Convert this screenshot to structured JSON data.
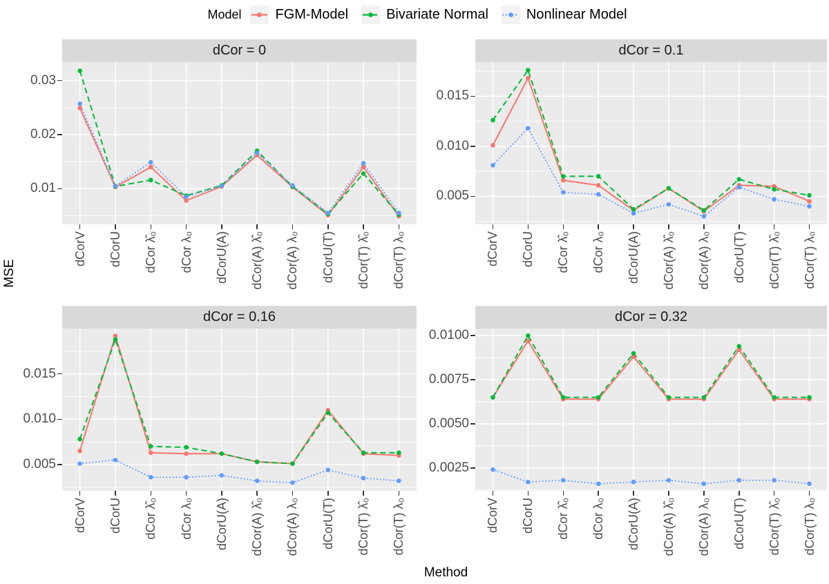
{
  "chart_data": {
    "type": "line",
    "title": "",
    "legend_title": "Model",
    "legend_position": "top",
    "x_title": "Method",
    "y_title": "MSE",
    "grid": "white major and minor gridlines on gray panel background",
    "panel_bg": "#EBEBEB",
    "strip_bg": "#D9D9D9",
    "categories": [
      "dCorV",
      "dCorU",
      "dCor λ̂₀",
      "dCor λ₀",
      "dCorU(A)",
      "dCor(A) λ̂₀",
      "dCor(A) λ₀",
      "dCorU(T)",
      "dCor(T) λ̂₀",
      "dCor(T) λ₀"
    ],
    "series_defs": [
      {
        "name": "FGM-Model",
        "color": "#F8766D",
        "linetype": "solid"
      },
      {
        "name": "Bivariate Normal",
        "color": "#00BA38",
        "linetype": "dashed"
      },
      {
        "name": "Nonlinear Model",
        "color": "#619CFF",
        "linetype": "dotted"
      }
    ],
    "facets": [
      {
        "title": "dCor = 0",
        "ylim": [
          0.0034,
          0.0334
        ],
        "ytick_values": [
          0.01,
          0.02,
          0.03
        ],
        "yticks": [
          "0.01",
          "0.02",
          "0.03"
        ],
        "series": [
          {
            "name": "FGM-Model",
            "values": [
              0.0249,
              0.0103,
              0.014,
              0.0078,
              0.0104,
              0.0162,
              0.0103,
              0.0051,
              0.014,
              0.0049
            ]
          },
          {
            "name": "Bivariate Normal",
            "values": [
              0.0318,
              0.0104,
              0.0116,
              0.0087,
              0.0106,
              0.017,
              0.0104,
              0.0053,
              0.0128,
              0.0052
            ]
          },
          {
            "name": "Nonlinear Model",
            "values": [
              0.0257,
              0.0105,
              0.0149,
              0.0085,
              0.0105,
              0.0166,
              0.0106,
              0.0055,
              0.0147,
              0.0055
            ]
          }
        ]
      },
      {
        "title": "dCor = 0.1",
        "ylim": [
          0.0022,
          0.0184
        ],
        "ytick_values": [
          0.005,
          0.01,
          0.015
        ],
        "yticks": [
          "0.005",
          "0.010",
          "0.015"
        ],
        "series": [
          {
            "name": "FGM-Model",
            "values": [
              0.0101,
              0.0168,
              0.0066,
              0.0061,
              0.0036,
              0.0058,
              0.0035,
              0.0061,
              0.006,
              0.0045
            ]
          },
          {
            "name": "Bivariate Normal",
            "values": [
              0.0126,
              0.0176,
              0.007,
              0.007,
              0.0037,
              0.0058,
              0.0036,
              0.0067,
              0.0057,
              0.0051
            ]
          },
          {
            "name": "Nonlinear Model",
            "values": [
              0.0081,
              0.0118,
              0.0054,
              0.0052,
              0.0033,
              0.0042,
              0.003,
              0.0059,
              0.0047,
              0.004
            ]
          }
        ]
      },
      {
        "title": "dCor = 0.16",
        "ylim": [
          0.0021,
          0.02
        ],
        "ytick_values": [
          0.005,
          0.01,
          0.015
        ],
        "yticks": [
          "0.005",
          "0.010",
          "0.015"
        ],
        "series": [
          {
            "name": "FGM-Model",
            "values": [
              0.0065,
              0.0192,
              0.0063,
              0.0062,
              0.0062,
              0.0053,
              0.0051,
              0.011,
              0.0062,
              0.006
            ]
          },
          {
            "name": "Bivariate Normal",
            "values": [
              0.0078,
              0.0188,
              0.007,
              0.0069,
              0.0062,
              0.0053,
              0.0051,
              0.0107,
              0.0063,
              0.0063
            ]
          },
          {
            "name": "Nonlinear Model",
            "values": [
              0.0051,
              0.0055,
              0.0036,
              0.0036,
              0.0038,
              0.0032,
              0.003,
              0.0044,
              0.0035,
              0.0032
            ]
          }
        ]
      },
      {
        "title": "dCor = 0.32",
        "ylim": [
          0.0012,
          0.0104
        ],
        "ytick_values": [
          0.0025,
          0.005,
          0.0075,
          0.01
        ],
        "yticks": [
          "0.0025",
          "0.0050",
          "0.0075",
          "0.0100"
        ],
        "series": [
          {
            "name": "FGM-Model",
            "values": [
              0.0065,
              0.0097,
              0.0064,
              0.0064,
              0.0088,
              0.0064,
              0.0064,
              0.0092,
              0.0064,
              0.0064
            ]
          },
          {
            "name": "Bivariate Normal",
            "values": [
              0.0065,
              0.01,
              0.0065,
              0.0065,
              0.009,
              0.0065,
              0.0065,
              0.0094,
              0.0065,
              0.0065
            ]
          },
          {
            "name": "Nonlinear Model",
            "values": [
              0.0024,
              0.0017,
              0.0018,
              0.0016,
              0.0017,
              0.0018,
              0.0016,
              0.0018,
              0.0018,
              0.0016
            ]
          }
        ]
      }
    ]
  }
}
